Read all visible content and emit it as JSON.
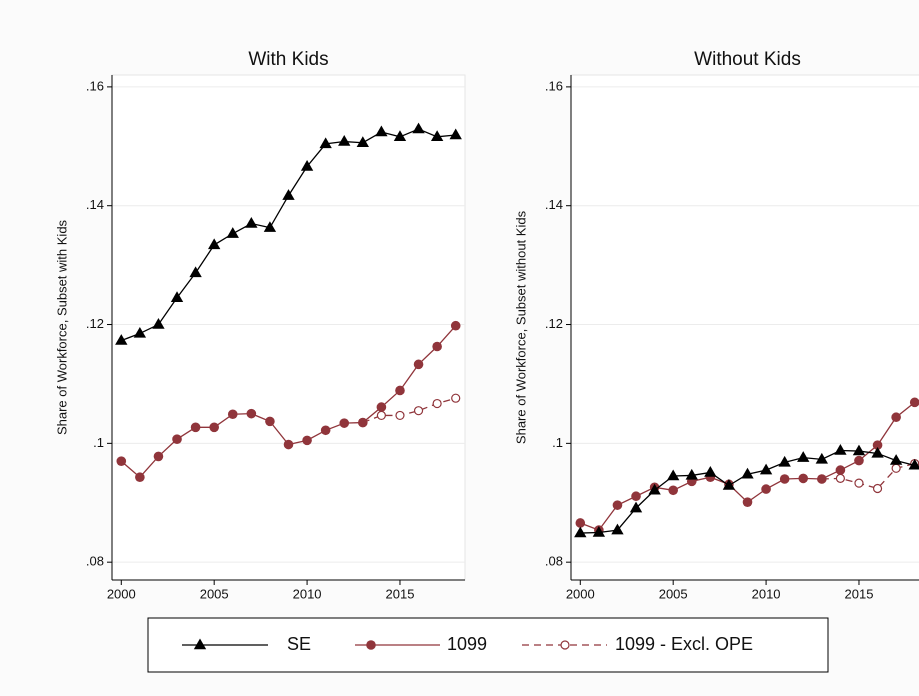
{
  "chart_data": [
    {
      "type": "line",
      "title": "With Kids",
      "y_label": "Share of Workforce, Subset with Kids",
      "x": [
        2000,
        2001,
        2002,
        2003,
        2004,
        2005,
        2006,
        2007,
        2008,
        2009,
        2010,
        2011,
        2012,
        2013,
        2014,
        2015,
        2016,
        2017,
        2018
      ],
      "series": [
        {
          "name": "SE",
          "color": "#000000",
          "marker": "triangle",
          "dashed": false,
          "values": [
            0.1173,
            0.1185,
            0.12,
            0.1245,
            0.1287,
            0.1334,
            0.1353,
            0.137,
            0.1363,
            0.1417,
            0.1466,
            0.1504,
            0.1508,
            0.1506,
            0.1524,
            0.1516,
            0.1529,
            0.1516,
            0.1519
          ]
        },
        {
          "name": "1099",
          "color": "#90353b",
          "marker": "circle",
          "dashed": false,
          "values": [
            0.097,
            0.0943,
            0.0978,
            0.1007,
            0.1027,
            0.1027,
            0.1049,
            0.105,
            0.1037,
            0.0998,
            0.1005,
            0.1022,
            0.1034,
            0.1035,
            0.1061,
            0.1089,
            0.1133,
            0.1163,
            0.1198
          ]
        },
        {
          "name": "1099 - Excl. OPE",
          "color": "#90353b",
          "marker": "hollow-circle",
          "dashed": true,
          "values": [
            null,
            null,
            null,
            null,
            null,
            null,
            null,
            null,
            null,
            null,
            null,
            null,
            null,
            0.1035,
            0.1047,
            0.1047,
            0.1055,
            0.1067,
            0.1076
          ]
        }
      ],
      "xlim": [
        1999.5,
        2018.5
      ],
      "ylim": [
        0.077,
        0.162
      ],
      "xticks": [
        2000,
        2005,
        2010,
        2015
      ],
      "yticks": [
        {
          "value": 0.08,
          "label": ".08"
        },
        {
          "value": 0.1,
          "label": ".1"
        },
        {
          "value": 0.12,
          "label": ".12"
        },
        {
          "value": 0.14,
          "label": ".14"
        },
        {
          "value": 0.16,
          "label": ".16"
        }
      ],
      "grid": true
    },
    {
      "type": "line",
      "title": "Without Kids",
      "y_label": "Share of Workforce, Subset without Kids",
      "x": [
        2000,
        2001,
        2002,
        2003,
        2004,
        2005,
        2006,
        2007,
        2008,
        2009,
        2010,
        2011,
        2012,
        2013,
        2014,
        2015,
        2016,
        2017,
        2018
      ],
      "series": [
        {
          "color": "#000000",
          "marker": "triangle",
          "dashed": false,
          "values": [
            0.0849,
            0.085,
            0.0854,
            0.0891,
            0.0921,
            0.0945,
            0.0946,
            0.0951,
            0.0929,
            0.0948,
            0.0955,
            0.0968,
            0.0976,
            0.0973,
            0.0988,
            0.0987,
            0.0983,
            0.0971,
            0.0963
          ]
        },
        {
          "color": "#90353b",
          "marker": "circle",
          "dashed": false,
          "values": [
            0.0866,
            0.0854,
            0.0896,
            0.0911,
            0.0926,
            0.0921,
            0.0936,
            0.0943,
            0.0931,
            0.0901,
            0.0923,
            0.094,
            0.0941,
            0.094,
            0.0955,
            0.0971,
            0.0997,
            0.1044,
            0.1069
          ]
        },
        {
          "color": "#90353b",
          "marker": "hollow-circle",
          "dashed": true,
          "values": [
            null,
            null,
            null,
            null,
            null,
            null,
            null,
            null,
            null,
            null,
            null,
            null,
            null,
            0.094,
            0.0941,
            0.0933,
            0.0924,
            0.0958,
            0.0966
          ]
        }
      ],
      "xlim": [
        1999.5,
        2018.5
      ],
      "ylim": [
        0.077,
        0.162
      ],
      "xticks": [
        2000,
        2005,
        2010,
        2015
      ],
      "yticks": [
        {
          "value": 0.08,
          "label": ".08"
        },
        {
          "value": 0.1,
          "label": ".1"
        },
        {
          "value": 0.12,
          "label": ".12"
        },
        {
          "value": 0.14,
          "label": ".14"
        },
        {
          "value": 0.16,
          "label": ".16"
        }
      ],
      "grid": true
    }
  ]
}
